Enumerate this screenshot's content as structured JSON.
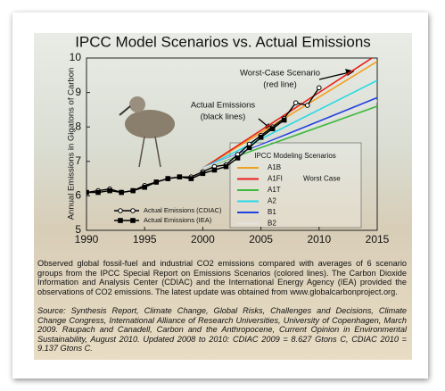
{
  "chart_data": {
    "type": "line",
    "title": "IPCC Model Scenarios vs. Actual Emissions",
    "y_label": "Annual Emissions in Gigatons of Carbon",
    "xlim": [
      1990,
      2015
    ],
    "xticks": [
      1990,
      1995,
      2000,
      2005,
      2010,
      2015
    ],
    "ylim": [
      5,
      10
    ],
    "yticks": [
      5,
      6,
      7,
      8,
      9,
      10
    ],
    "grid": false,
    "legend_title": "IPCC Modeling Scenarios",
    "annotations": [
      "Worst-Case Scenario",
      "(red line)",
      "Actual Emissions",
      "(black lines)",
      "Worst Case"
    ],
    "series": [
      {
        "name": "A1B",
        "color": "#f0a020",
        "x": [
          2000,
          2015
        ],
        "values": [
          6.8,
          9.9
        ]
      },
      {
        "name": "A1FI",
        "color": "#e8201a",
        "x": [
          2000,
          2015
        ],
        "values": [
          6.8,
          10.1
        ]
      },
      {
        "name": "A1T",
        "color": "#3cb83c",
        "x": [
          2000,
          2015
        ],
        "values": [
          6.8,
          8.6
        ]
      },
      {
        "name": "A2",
        "color": "#28d8e8",
        "x": [
          2000,
          2015
        ],
        "values": [
          6.8,
          9.35
        ]
      },
      {
        "name": "B1",
        "color": "#2040e0",
        "x": [
          2000,
          2015
        ],
        "values": [
          6.8,
          8.85
        ]
      },
      {
        "name": "B2",
        "color": "#e4e4e4",
        "x": [
          2000,
          2015
        ],
        "values": [
          6.8,
          8.75
        ]
      },
      {
        "name": "Actual Emissions (CDIAC)",
        "color": "#000000",
        "marker": "circle",
        "marker_fill": "#ffffff",
        "x": [
          1990,
          1991,
          1992,
          1993,
          1994,
          1995,
          1996,
          1997,
          1998,
          1999,
          2000,
          2001,
          2002,
          2003,
          2004,
          2005,
          2006,
          2007,
          2008,
          2009,
          2010
        ],
        "values": [
          6.1,
          6.15,
          6.2,
          6.1,
          6.15,
          6.3,
          6.4,
          6.5,
          6.55,
          6.55,
          6.7,
          6.85,
          6.9,
          7.2,
          7.5,
          7.75,
          8.0,
          8.25,
          8.7,
          8.627,
          9.137
        ]
      },
      {
        "name": "Actual Emissions (IEA)",
        "color": "#000000",
        "marker": "square",
        "marker_fill": "#000000",
        "x": [
          1990,
          1991,
          1992,
          1993,
          1994,
          1995,
          1996,
          1997,
          1998,
          1999,
          2000,
          2001,
          2002,
          2003,
          2004,
          2005,
          2006,
          2007
        ],
        "values": [
          6.1,
          6.1,
          6.15,
          6.1,
          6.15,
          6.25,
          6.4,
          6.5,
          6.55,
          6.5,
          6.65,
          6.75,
          6.85,
          7.1,
          7.4,
          7.7,
          7.95,
          8.2
        ]
      }
    ]
  },
  "caption": "Observed global fossil-fuel and industrial CO2 emissions compared with averages of 6 scenario groups from the IPCC Special Report on Emissions Scenarios (colored lines). The Carbon Dioxide Information and Analysis Center (CDIAC) and the International Energy Agency (IEA) provided the observations of CO2 emissions. The latest update was obtained from www.globalcarbonproject.org.",
  "source": "Source: Synthesis Report, Climate Change, Global Risks, Challenges and Decisions, Climate Change Congress, International Alliance of Research Universities, University of Copenhagen, March 2009. Raupach and Canadell, Carbon and the Anthropocene, Current Opinion in Environmental Sustainability, August 2010. Updated 2008 to 2010: CDIAC 2009 = 8.627 Gtons C, CDIAC 2010 = 9.137 Gtons C."
}
